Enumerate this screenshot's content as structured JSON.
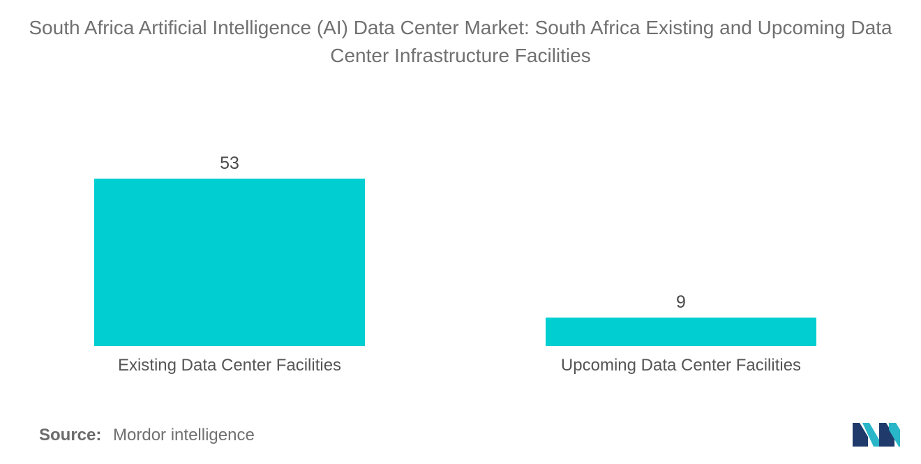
{
  "chart_data": {
    "type": "bar",
    "title": "South Africa Artificial Intelligence (AI) Data Center Market: South Africa Existing and Upcoming Data Center Infrastructure Facilities",
    "categories": [
      "Existing Data Center Facilities",
      "Upcoming Data Center Facilities"
    ],
    "values": [
      53,
      9
    ],
    "value_labels": [
      "53",
      "9"
    ],
    "xlabel": "",
    "ylabel": "",
    "ylim": [
      0,
      53
    ],
    "grid": false,
    "legend": "none",
    "bar_color": "#00CED1"
  },
  "source": {
    "label": "Source:",
    "text": "Mordor intelligence"
  },
  "logo": {
    "icon": "mordor-intelligence-logo-icon",
    "colors": [
      "#1F3A6B",
      "#29B6C8"
    ]
  }
}
